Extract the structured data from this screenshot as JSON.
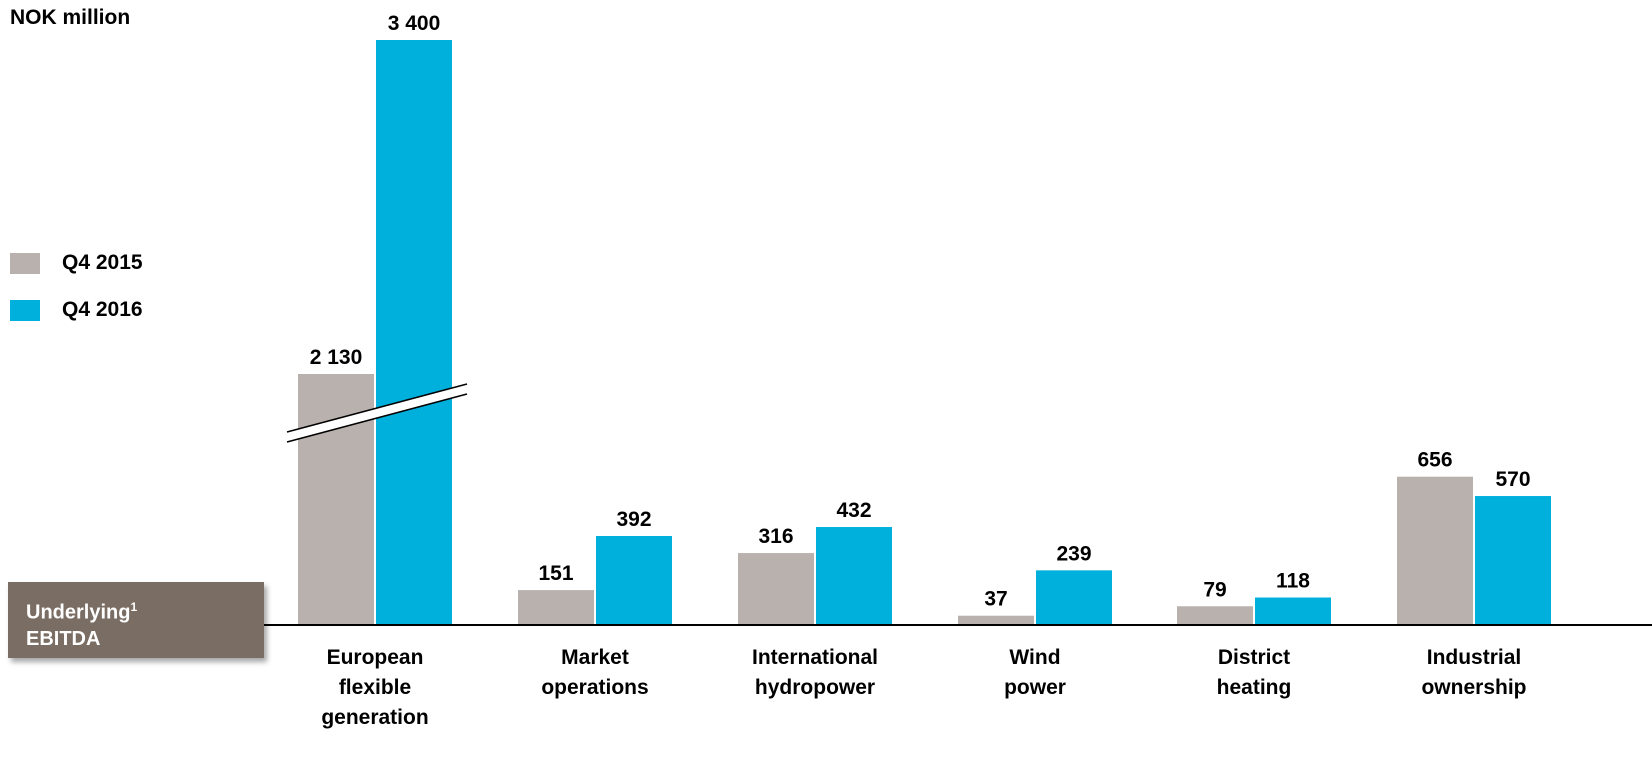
{
  "unit_label": "NOK million",
  "badge": {
    "line1": "Underlying",
    "sup": "1",
    "line2": "EBITDA"
  },
  "colors": {
    "q4_2015": "#b9b1ad",
    "q4_2016": "#00b0dc",
    "badge": "#7a6d63"
  },
  "chart_data": {
    "type": "bar",
    "categories": [
      [
        "European",
        "flexible",
        "generation"
      ],
      [
        "Market",
        "operations"
      ],
      [
        "International",
        "hydropower"
      ],
      [
        "Wind",
        "power"
      ],
      [
        "District",
        "heating"
      ],
      [
        "Industrial",
        "ownership"
      ]
    ],
    "series": [
      {
        "name": "Q4 2015",
        "values": [
          2130,
          151,
          316,
          37,
          79,
          656
        ],
        "labels": [
          "2 130",
          "151",
          "316",
          "37",
          "79",
          "656"
        ]
      },
      {
        "name": "Q4 2016",
        "values": [
          3400,
          392,
          432,
          239,
          118,
          570
        ],
        "labels": [
          "3 400",
          "392",
          "432",
          "239",
          "118",
          "570"
        ]
      }
    ],
    "axis_break": true,
    "legend_position": "left"
  }
}
